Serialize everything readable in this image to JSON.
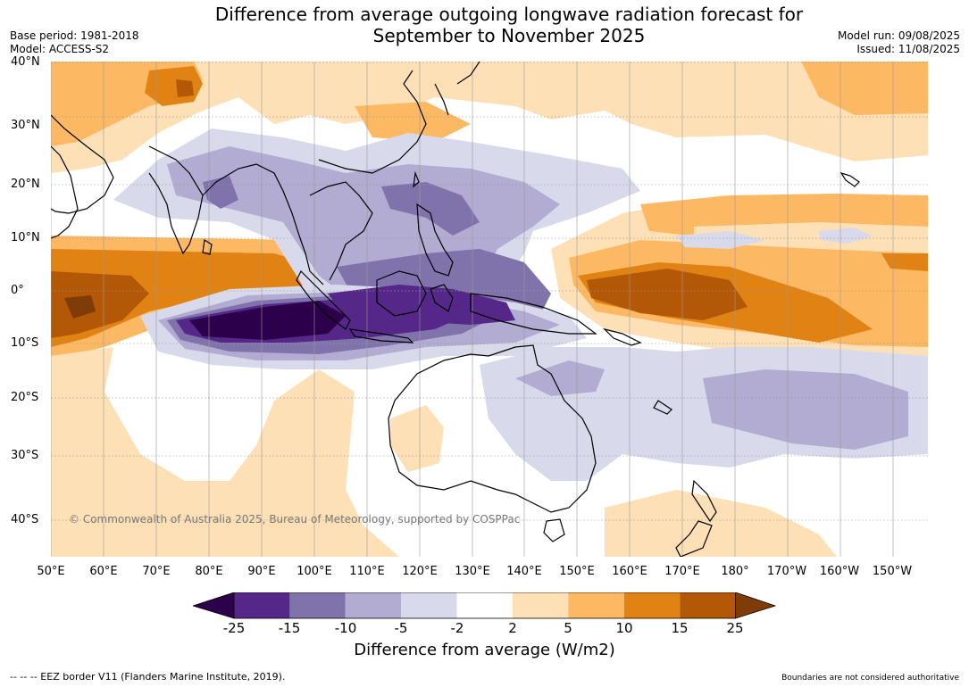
{
  "title": {
    "line1": "Difference from average outgoing longwave radiation forecast for",
    "line2": "September to November 2025"
  },
  "meta": {
    "base_period": "Base period: 1981-2018",
    "model": "Model: ACCESS-S2",
    "model_run": "Model run: 09/08/2025",
    "issued": "Issued: 11/08/2025"
  },
  "map": {
    "lat_labels": [
      "40°N",
      "30°N",
      "20°N",
      "10°N",
      "0°",
      "10°S",
      "20°S",
      "30°S",
      "40°S"
    ],
    "lon_labels": [
      "50°E",
      "60°E",
      "70°E",
      "80°E",
      "90°E",
      "100°E",
      "110°E",
      "120°E",
      "130°E",
      "140°E",
      "150°E",
      "160°E",
      "170°E",
      "180°",
      "170°W",
      "160°W",
      "150°W"
    ],
    "copyright": "© Commonwealth of Australia 2025, Bureau of Meteorology, supported by COSPPac",
    "background_color": "#ffffff",
    "land_outline_color": "#000000"
  },
  "colorbar": {
    "ticks": [
      "-25",
      "-15",
      "-10",
      "-5",
      "-2",
      "2",
      "5",
      "10",
      "15",
      "25"
    ],
    "colors": [
      "#2d004b",
      "#542788",
      "#8073ac",
      "#b2abd2",
      "#d8daeb",
      "#ffffff",
      "#fee0b6",
      "#fdb863",
      "#e08214",
      "#b35806",
      "#7f3b08"
    ],
    "label": "Difference from average (W/m2)"
  },
  "footer": {
    "eez_note": "--  --  -- EEZ border V11 (Flanders Marine Institute, 2019).",
    "boundaries_note": "Boundaries are not considered authoritative"
  }
}
